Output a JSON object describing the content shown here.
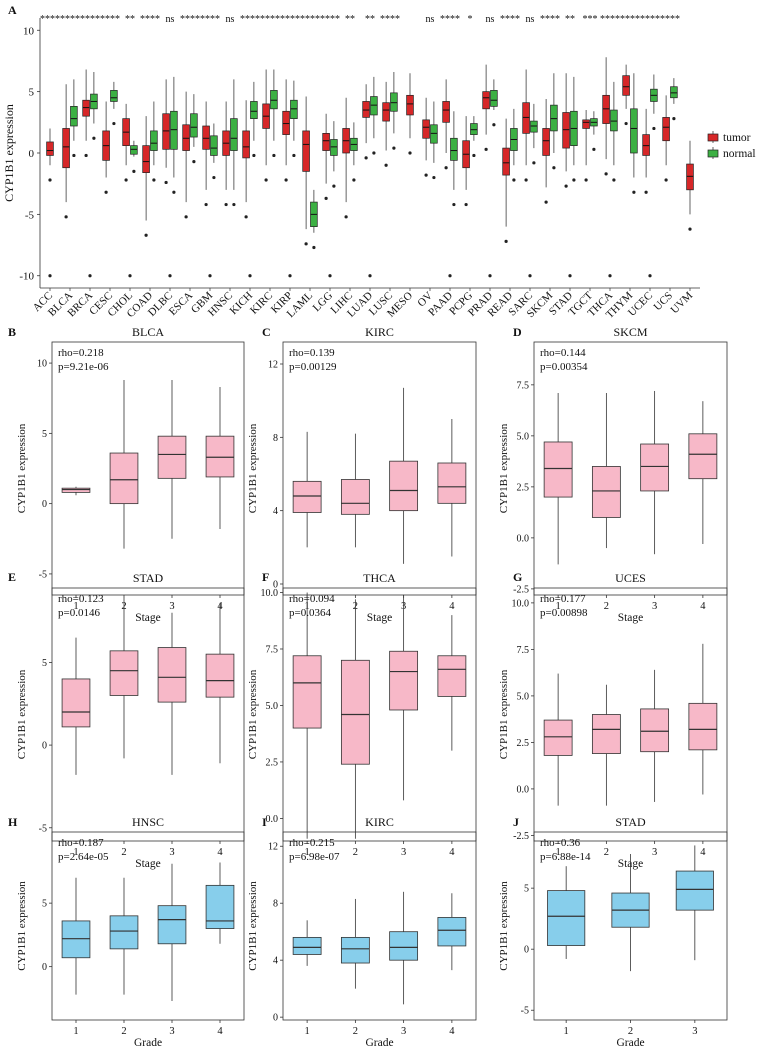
{
  "chart_data": [
    {
      "panel": "A",
      "type": "boxplot",
      "ylabel": "CYP1B1 expression",
      "ylim": [
        -11,
        11
      ],
      "yticks": [
        -10,
        -5,
        0,
        5,
        10
      ],
      "legend": {
        "position": "right",
        "entries": [
          {
            "name": "tumor",
            "color": "#d62728"
          },
          {
            "name": "normal",
            "color": "#3cb043"
          }
        ]
      },
      "categories": [
        {
          "name": "ACC",
          "sig": "****",
          "tumor": [
            -1.0,
            -0.2,
            0.2,
            0.9,
            2.0
          ]
        },
        {
          "name": "BLCA",
          "sig": "****",
          "tumor": [
            -4.0,
            -1.2,
            0.5,
            2.0,
            5.6
          ],
          "normal": [
            1.0,
            2.2,
            2.8,
            3.8,
            6.0
          ]
        },
        {
          "name": "BRCA",
          "sig": "****",
          "tumor": [
            1.0,
            3.0,
            3.7,
            4.3,
            6.8
          ],
          "normal": [
            2.4,
            3.6,
            4.2,
            4.8,
            6.6
          ]
        },
        {
          "name": "CESC",
          "sig": "****",
          "tumor": [
            -2.0,
            -0.6,
            0.6,
            1.8,
            4.2
          ],
          "normal": [
            3.6,
            4.2,
            4.5,
            5.1,
            5.8
          ]
        },
        {
          "name": "CHOL",
          "sig": "**",
          "tumor": [
            -1.0,
            0.6,
            1.7,
            2.8,
            4.0
          ],
          "normal": [
            -0.3,
            -0.1,
            0.3,
            0.6,
            1.0
          ]
        },
        {
          "name": "COAD",
          "sig": "****",
          "tumor": [
            -5.5,
            -1.6,
            -0.7,
            0.6,
            3.0
          ],
          "normal": [
            -1.0,
            0.2,
            0.8,
            1.8,
            4.2
          ]
        },
        {
          "name": "DLBC",
          "sig": "ns",
          "tumor": [
            -1.2,
            0.3,
            1.8,
            3.2,
            6.0
          ],
          "normal": [
            -2.0,
            0.3,
            1.9,
            3.4,
            6.2
          ]
        },
        {
          "name": "ESCA",
          "sig": "****",
          "tumor": [
            -4.0,
            0.2,
            1.2,
            2.3,
            5.0
          ],
          "normal": [
            0.5,
            1.3,
            2.1,
            3.2,
            4.8
          ]
        },
        {
          "name": "GBM",
          "sig": "****",
          "tumor": [
            -3.0,
            0.3,
            1.2,
            2.2,
            4.2
          ],
          "normal": [
            -0.8,
            -0.2,
            0.4,
            1.4,
            2.4
          ]
        },
        {
          "name": "HNSC",
          "sig": "ns",
          "tumor": [
            -3.0,
            -0.2,
            0.8,
            1.8,
            4.2
          ],
          "normal": [
            -3.0,
            0.2,
            1.2,
            2.8,
            6.0
          ]
        },
        {
          "name": "KICH",
          "sig": "****",
          "tumor": [
            -4.0,
            -0.4,
            0.5,
            1.8,
            4.3
          ],
          "normal": [
            1.0,
            2.8,
            3.4,
            4.2,
            5.8
          ]
        },
        {
          "name": "KIRC",
          "sig": "****",
          "tumor": [
            -1.0,
            2.0,
            3.0,
            4.0,
            6.8
          ],
          "normal": [
            1.0,
            3.6,
            4.3,
            5.1,
            6.8
          ]
        },
        {
          "name": "KIRP",
          "sig": "****",
          "tumor": [
            -1.0,
            1.5,
            2.4,
            3.4,
            6.0
          ],
          "normal": [
            1.0,
            2.8,
            3.6,
            4.3,
            5.9
          ]
        },
        {
          "name": "LAML",
          "sig": "****",
          "tumor": [
            -6.2,
            -1.5,
            0.7,
            1.8,
            4.6
          ],
          "normal": [
            -6.5,
            -6.0,
            -5.0,
            -4.0,
            -3.0
          ]
        },
        {
          "name": "LGG",
          "sig": "****",
          "tumor": [
            -2.5,
            0.2,
            1.0,
            1.6,
            3.2
          ],
          "normal": [
            -1.5,
            -0.2,
            0.5,
            1.1,
            2.6
          ]
        },
        {
          "name": "LIHC",
          "sig": "**",
          "tumor": [
            -4.0,
            0.0,
            1.0,
            2.0,
            4.5
          ],
          "normal": [
            -1.0,
            0.2,
            0.7,
            1.2,
            2.5
          ]
        },
        {
          "name": "LUAD",
          "sig": "**",
          "tumor": [
            0.8,
            2.9,
            3.5,
            4.2,
            5.6
          ],
          "normal": [
            1.2,
            3.1,
            3.9,
            4.6,
            6.2
          ]
        },
        {
          "name": "LUSC",
          "sig": "****",
          "tumor": [
            0.2,
            2.6,
            3.5,
            4.1,
            5.8
          ],
          "normal": [
            1.6,
            3.4,
            4.1,
            4.9,
            6.6
          ]
        },
        {
          "name": "MESO",
          "sig": "",
          "tumor": [
            1.2,
            3.1,
            4.0,
            4.7,
            6.5
          ]
        },
        {
          "name": "OV",
          "sig": "ns",
          "tumor": [
            -0.6,
            1.2,
            2.1,
            2.7,
            4.5
          ],
          "normal": [
            -0.8,
            0.8,
            1.6,
            2.3,
            4.2
          ]
        },
        {
          "name": "PAAD",
          "sig": "****",
          "tumor": [
            0.0,
            2.5,
            3.5,
            4.2,
            6.0
          ],
          "normal": [
            -3.0,
            -0.6,
            0.2,
            1.2,
            3.4
          ]
        },
        {
          "name": "PCPG",
          "sig": "*",
          "tumor": [
            -3.0,
            -1.2,
            -0.1,
            1.0,
            3.0
          ],
          "normal": [
            1.0,
            1.5,
            1.9,
            2.4,
            3.0
          ]
        },
        {
          "name": "PRAD",
          "sig": "ns",
          "tumor": [
            1.5,
            3.6,
            4.5,
            5.0,
            7.2
          ],
          "normal": [
            3.5,
            3.8,
            4.3,
            5.1,
            6.0
          ]
        },
        {
          "name": "READ",
          "sig": "****",
          "tumor": [
            -6.0,
            -1.8,
            -0.8,
            0.4,
            2.8
          ],
          "normal": [
            -1.0,
            0.2,
            1.1,
            2.0,
            3.6
          ]
        },
        {
          "name": "SARC",
          "sig": "ns",
          "tumor": [
            -1.0,
            1.6,
            2.9,
            4.1,
            6.8
          ],
          "normal": [
            0.4,
            1.7,
            2.2,
            2.6,
            4.0
          ]
        },
        {
          "name": "SKCM",
          "sig": "****",
          "tumor": [
            -2.8,
            -0.2,
            1.0,
            2.0,
            4.4
          ],
          "normal": [
            0.0,
            1.8,
            2.8,
            3.9,
            6.5
          ]
        },
        {
          "name": "STAD",
          "sig": "**",
          "tumor": [
            -1.5,
            0.4,
            1.9,
            3.3,
            6.5
          ],
          "normal": [
            -1.0,
            0.6,
            2.0,
            3.4,
            6.2
          ]
        },
        {
          "name": "TGCT",
          "sig": "***",
          "tumor": [
            -1.0,
            2.0,
            2.5,
            2.7,
            3.5
          ],
          "normal": [
            1.5,
            2.2,
            2.5,
            2.8,
            3.4
          ]
        },
        {
          "name": "THCA",
          "sig": "****",
          "tumor": [
            -0.5,
            2.4,
            3.6,
            4.7,
            7.8
          ],
          "normal": [
            -1.0,
            1.8,
            2.6,
            3.5,
            5.8
          ]
        },
        {
          "name": "THYM",
          "sig": "****",
          "tumor": [
            3.6,
            4.7,
            5.4,
            6.3,
            7.2
          ],
          "normal": [
            -2.0,
            0.0,
            2.0,
            3.6,
            6.5
          ]
        },
        {
          "name": "UCEC",
          "sig": "****",
          "tumor": [
            -2.0,
            -0.2,
            0.6,
            1.5,
            3.6
          ],
          "normal": [
            3.2,
            4.2,
            4.7,
            5.2,
            6.4
          ]
        },
        {
          "name": "UCS",
          "sig": "****",
          "tumor": [
            -1.0,
            1.0,
            2.1,
            2.9,
            4.7
          ],
          "normal": [
            4.0,
            4.5,
            4.9,
            5.4,
            6.1
          ]
        },
        {
          "name": "UVM",
          "sig": "",
          "tumor": [
            -5.0,
            -3.0,
            -1.9,
            -0.9,
            1.0
          ]
        }
      ],
      "outlier_note": "scattered outliers near -10 (floor) and in upper tails"
    },
    {
      "panel": "B",
      "type": "boxplot",
      "title": "BLCA",
      "stat1": "rho=0.218",
      "stat2": "p=9.21e-06",
      "xlabel": "Stage",
      "ylabel": "CYP1B1 expression",
      "fill": "#f7b8c8",
      "ylim": [
        -6.5,
        11.5
      ],
      "yticks": [
        -5,
        0,
        5,
        10
      ],
      "groups": [
        "1",
        "2",
        "3",
        "4"
      ],
      "boxes": [
        [
          0.6,
          0.8,
          1.0,
          1.1,
          1.2
        ],
        [
          -3.2,
          0.0,
          1.7,
          3.6,
          8.8
        ],
        [
          -2.5,
          1.8,
          3.5,
          4.8,
          8.8
        ],
        [
          -1.8,
          1.9,
          3.3,
          4.8,
          8.3
        ]
      ]
    },
    {
      "panel": "C",
      "type": "boxplot",
      "title": "KIRC",
      "stat1": "rho=0.139",
      "stat2": "p=0.00129",
      "xlabel": "Stage",
      "ylabel": "CYP1B1 expression",
      "fill": "#f7b8c8",
      "ylim": [
        -0.6,
        13.2
      ],
      "yticks": [
        0,
        4,
        8,
        12
      ],
      "groups": [
        "1",
        "2",
        "3",
        "4"
      ],
      "boxes": [
        [
          2.0,
          3.9,
          4.8,
          5.6,
          8.3
        ],
        [
          2.0,
          3.8,
          4.4,
          5.7,
          8.2
        ],
        [
          1.1,
          4.0,
          5.1,
          6.7,
          10.7
        ],
        [
          1.5,
          4.4,
          5.3,
          6.6,
          9.0
        ]
      ]
    },
    {
      "panel": "D",
      "type": "boxplot",
      "title": "SKCM",
      "stat1": "rho=0.144",
      "stat2": "p=0.00354",
      "xlabel": "Stage",
      "ylabel": "CYP1B1 expression",
      "fill": "#f7b8c8",
      "ylim": [
        -2.8,
        9.6
      ],
      "yticks": [
        -2.5,
        0.0,
        2.5,
        5.0,
        7.5
      ],
      "groups": [
        "1",
        "2",
        "3",
        "4"
      ],
      "boxes": [
        [
          -1.3,
          2.0,
          3.4,
          4.7,
          7.1
        ],
        [
          -0.5,
          1.0,
          2.3,
          3.5,
          7.1
        ],
        [
          -0.8,
          2.3,
          3.5,
          4.6,
          7.2
        ],
        [
          -0.3,
          2.9,
          4.1,
          5.1,
          6.7
        ]
      ]
    },
    {
      "panel": "E",
      "type": "boxplot",
      "title": "STAD",
      "stat1": "rho=0.123",
      "stat2": "p=0.0146",
      "xlabel": "Stage",
      "ylabel": "CYP1B1 expression",
      "fill": "#f7b8c8",
      "ylim": [
        -5.8,
        9.5
      ],
      "yticks": [
        -5,
        0,
        5
      ],
      "groups": [
        "1",
        "2",
        "3",
        "4"
      ],
      "boxes": [
        [
          -1.8,
          1.1,
          2.0,
          4.0,
          6.5
        ],
        [
          -0.8,
          3.0,
          4.5,
          5.7,
          8.9
        ],
        [
          -1.8,
          2.6,
          4.1,
          5.9,
          8.0
        ],
        [
          -1.1,
          2.9,
          3.9,
          5.5,
          8.6
        ]
      ]
    },
    {
      "panel": "F",
      "type": "boxplot",
      "title": "THCA",
      "stat1": "rho=0.094",
      "stat2": "p=0.0364",
      "xlabel": "",
      "ylabel": "CYP1B1 expression",
      "fill": "#f7b8c8",
      "ylim": [
        -1.0,
        10.2
      ],
      "yticks": [
        0.0,
        2.5,
        5.0,
        7.5,
        10.0
      ],
      "groups": [
        "1",
        "2",
        "3",
        "4"
      ],
      "boxes": [
        [
          -0.9,
          4.0,
          6.0,
          7.2,
          10.0
        ],
        [
          -0.9,
          2.4,
          4.6,
          7.0,
          9.7
        ],
        [
          0.8,
          4.8,
          6.5,
          7.4,
          9.9
        ],
        [
          3.0,
          5.4,
          6.6,
          7.2,
          9.0
        ]
      ]
    },
    {
      "panel": "G",
      "type": "boxplot",
      "title": "UCES",
      "stat1": "rho=0.177",
      "stat2": "p=0.00898",
      "xlabel": "Stage",
      "ylabel": "CYP1B1 expression",
      "fill": "#f7b8c8",
      "ylim": [
        -2.8,
        10.8
      ],
      "yticks": [
        -2.5,
        0.0,
        2.5,
        5.0,
        7.5,
        10.0
      ],
      "groups": [
        "1",
        "2",
        "3",
        "4"
      ],
      "boxes": [
        [
          -0.9,
          1.8,
          2.8,
          3.7,
          6.2
        ],
        [
          -0.9,
          1.9,
          3.2,
          4.0,
          5.6
        ],
        [
          -0.7,
          2.0,
          3.1,
          4.3,
          6.4
        ],
        [
          -0.3,
          2.1,
          3.2,
          4.6,
          7.8
        ]
      ]
    },
    {
      "panel": "H",
      "type": "boxplot",
      "title": "HNSC",
      "stat1": "rho=0.187",
      "stat2": "p=2.64e-05",
      "xlabel": "Grade",
      "ylabel": "CYP1B1 expression",
      "fill": "#87ceeb",
      "ylim": [
        -4.2,
        10.6
      ],
      "yticks": [
        0,
        5
      ],
      "groups": [
        "1",
        "2",
        "3",
        "4"
      ],
      "boxes": [
        [
          -2.2,
          0.7,
          2.2,
          3.6,
          7.0
        ],
        [
          -2.2,
          1.4,
          2.8,
          4.0,
          7.0
        ],
        [
          -2.7,
          1.8,
          3.7,
          4.8,
          8.1
        ],
        [
          1.8,
          3.0,
          3.6,
          6.4,
          8.2
        ]
      ]
    },
    {
      "panel": "I",
      "type": "boxplot",
      "title": "KIRC",
      "stat1": "rho=0.215",
      "stat2": "p=6.98e-07",
      "xlabel": "Grade",
      "ylabel": "CYP1B1 expression",
      "fill": "#87ceeb",
      "ylim": [
        -0.2,
        13.0
      ],
      "yticks": [
        0,
        4,
        8,
        12
      ],
      "groups": [
        "1",
        "2",
        "3",
        "4"
      ],
      "boxes": [
        [
          3.6,
          4.4,
          4.9,
          5.6,
          6.8
        ],
        [
          2.0,
          3.8,
          4.8,
          5.6,
          8.3
        ],
        [
          0.9,
          4.0,
          4.9,
          6.0,
          8.8
        ],
        [
          3.3,
          5.0,
          6.1,
          7.0,
          8.7
        ]
      ]
    },
    {
      "panel": "J",
      "type": "boxplot",
      "title": "STAD",
      "stat1": "rho=0.36",
      "stat2": "p=6.88e-14",
      "xlabel": "Grade",
      "ylabel": "CYP1B1 expression",
      "fill": "#87ceeb",
      "ylim": [
        -5.8,
        9.6
      ],
      "yticks": [
        -5,
        0,
        5
      ],
      "groups": [
        "1",
        "2",
        "3"
      ],
      "boxes": [
        [
          -0.8,
          0.3,
          2.7,
          4.8,
          6.8
        ],
        [
          -1.8,
          1.8,
          3.2,
          4.6,
          7.8
        ],
        [
          -0.9,
          3.2,
          4.9,
          6.4,
          8.5
        ]
      ]
    }
  ]
}
